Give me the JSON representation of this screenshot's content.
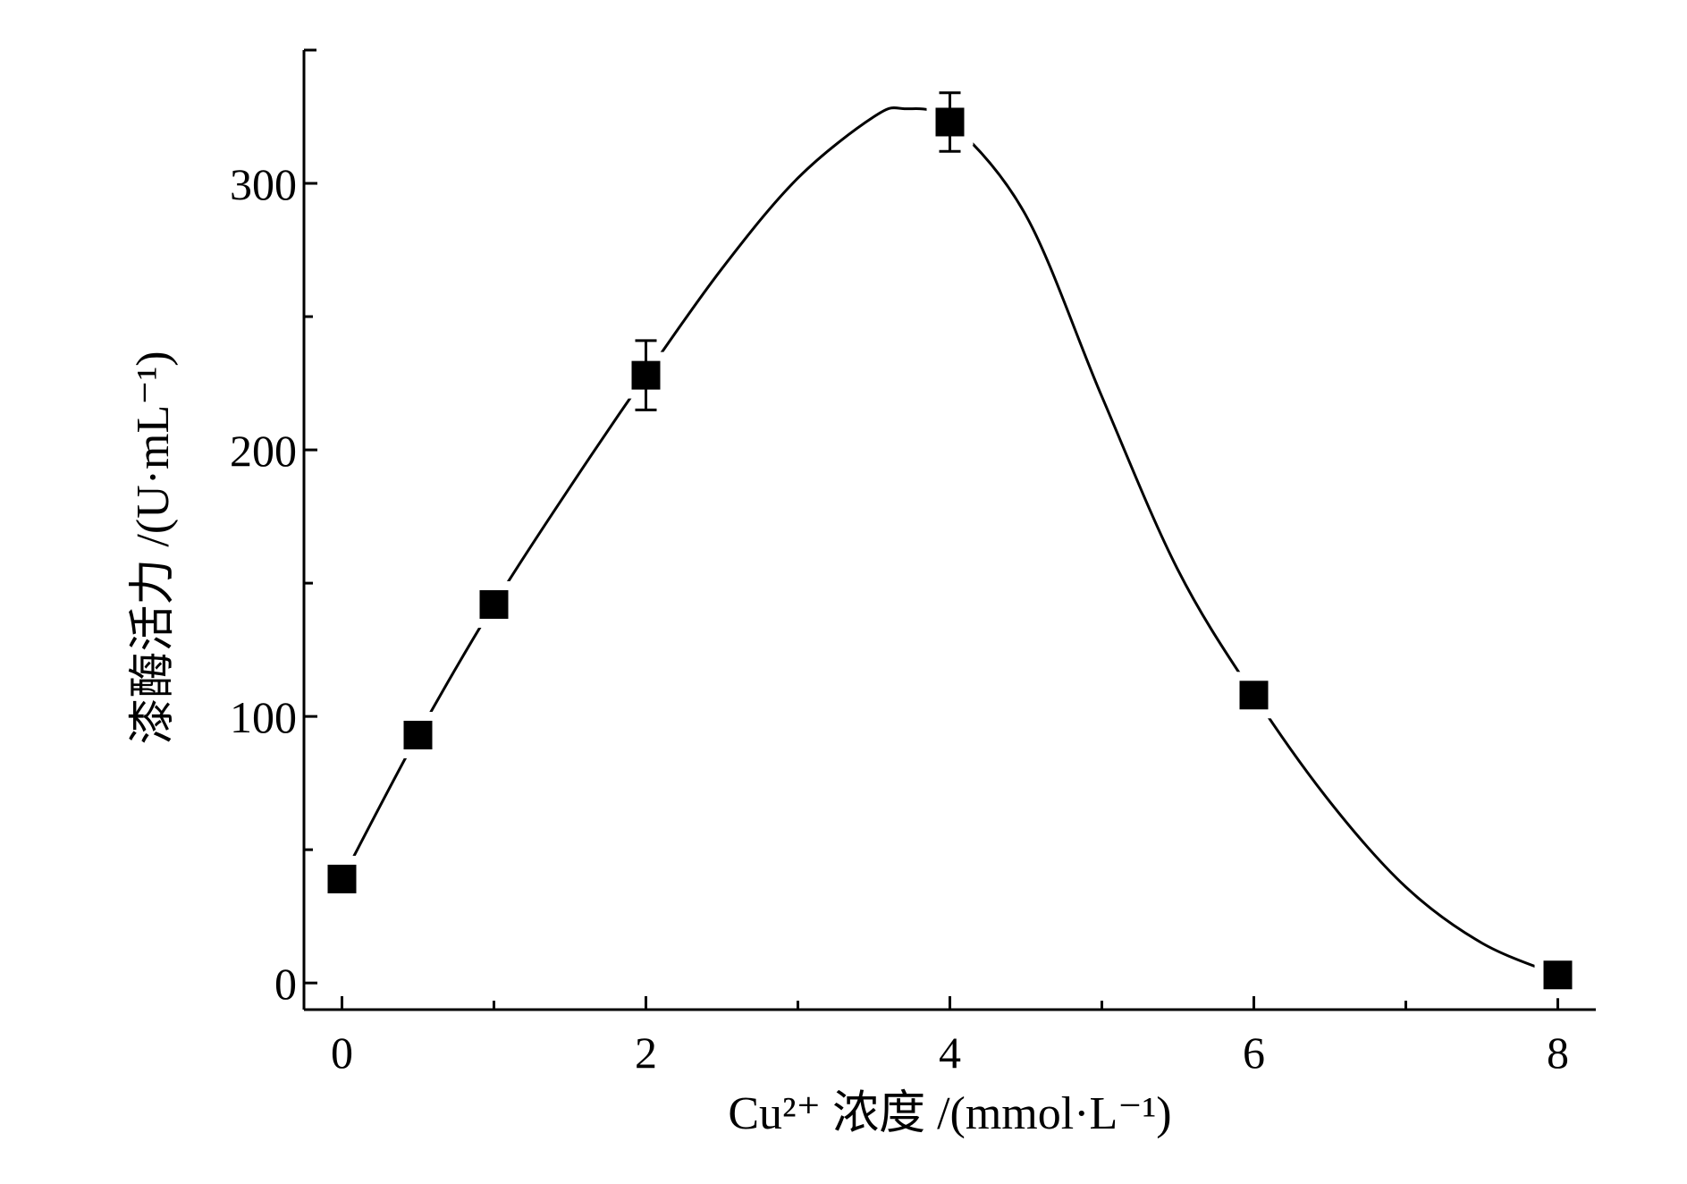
{
  "chart_data": {
    "type": "scatter",
    "xlabel": "Cu²⁺ 浓度 /(mmol·L⁻¹)",
    "ylabel": "漆酶活力 /(U·mL⁻¹)",
    "xlim": [
      -0.25,
      8.25
    ],
    "ylim": [
      -10,
      350
    ],
    "xticks": [
      0,
      2,
      4,
      6,
      8
    ],
    "xtick_labels": [
      "0",
      "2",
      "4",
      "6",
      "8"
    ],
    "x_minor_ticks": [
      1,
      3,
      5,
      7
    ],
    "yticks": [
      0,
      100,
      200,
      300
    ],
    "ytick_labels": [
      "0",
      "100",
      "200",
      "300"
    ],
    "y_minor_ticks": [
      50,
      150,
      250
    ],
    "grid": false,
    "legend": "none",
    "series": [
      {
        "marker": "filled-square",
        "color": "#000000",
        "x": [
          0,
          0.5,
          1,
          2,
          4,
          6,
          8
        ],
        "y": [
          39,
          93,
          142,
          228,
          323,
          108,
          3
        ],
        "error": [
          null,
          null,
          null,
          13,
          11,
          null,
          null
        ]
      }
    ],
    "fit_curve": {
      "x": [
        0,
        0.5,
        1,
        1.5,
        2,
        2.5,
        3,
        3.5,
        3.7,
        4,
        4.5,
        5,
        5.5,
        6,
        6.5,
        7,
        7.5,
        8
      ],
      "y": [
        39,
        93,
        142,
        186,
        228,
        268,
        302,
        325,
        328,
        323,
        288,
        220,
        155,
        108,
        68,
        36,
        15,
        3
      ]
    }
  }
}
